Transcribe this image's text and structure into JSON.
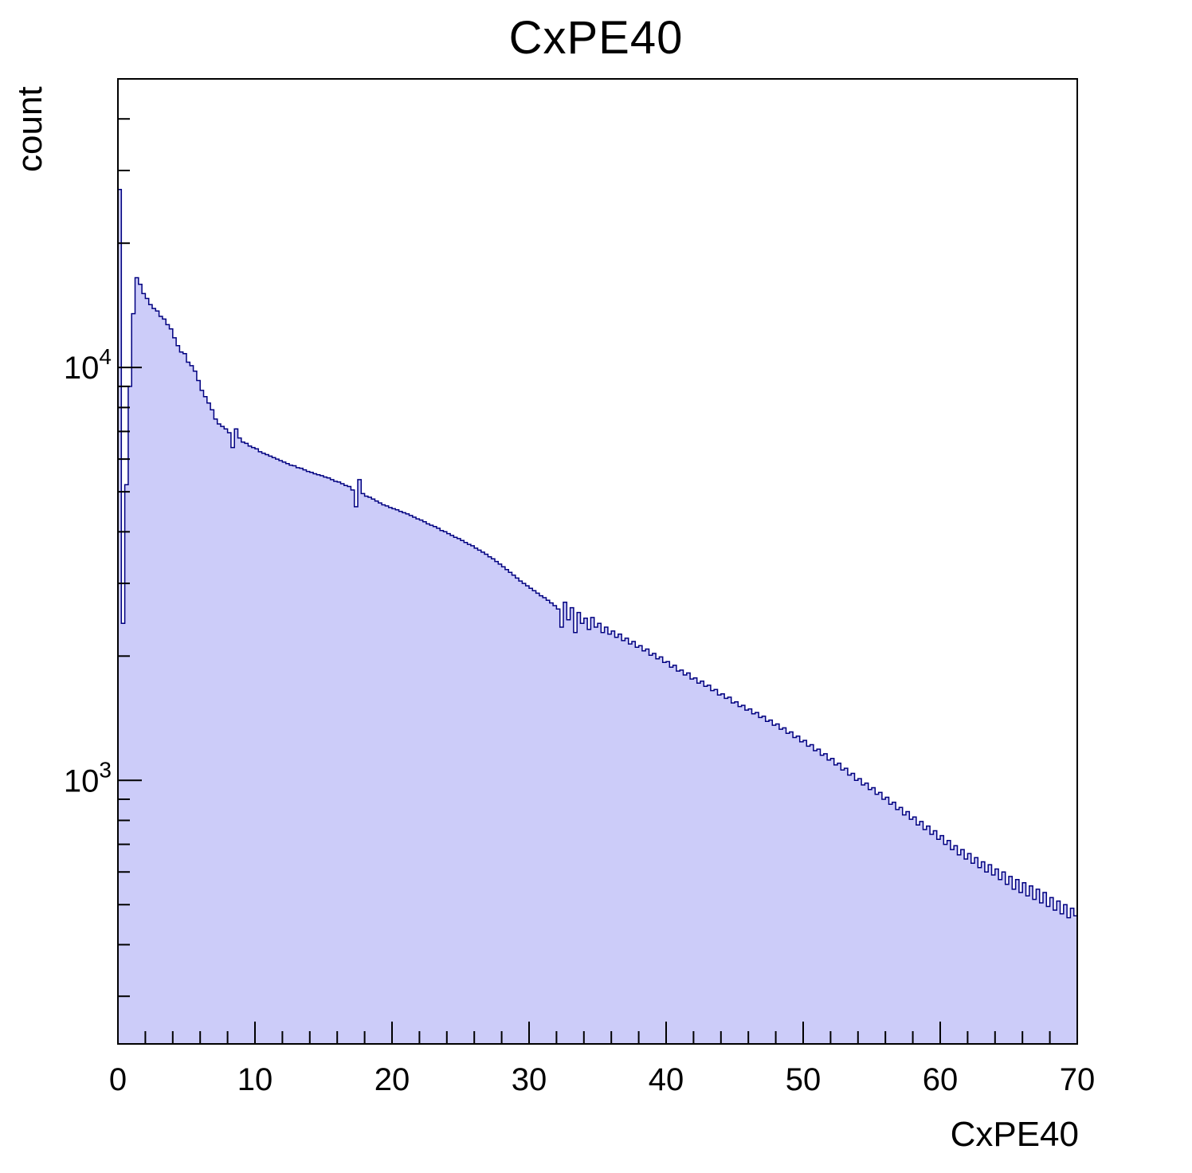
{
  "chart_data": {
    "type": "bar",
    "subtype": "histogram-log-y",
    "title": "CxPE40",
    "xlabel": "CxPE40",
    "ylabel": "count",
    "x_min": 0,
    "x_max": 70,
    "bin_width": 0.25,
    "y_scale": "log",
    "ylim": [
      230,
      50000
    ],
    "x_ticks": [
      0,
      10,
      20,
      30,
      40,
      50,
      60,
      70
    ],
    "x_minor_tick_step": 2,
    "y_major_ticks": [
      {
        "value": 1000,
        "exp": "3"
      },
      {
        "value": 10000,
        "exp": "4"
      }
    ],
    "legend": "none",
    "grid": false,
    "colors": {
      "fill": "#ccccf9",
      "line": "#000080",
      "axis": "#000000",
      "background": "#ffffff"
    },
    "counts": [
      27000,
      2400,
      5200,
      9000,
      13500,
      16500,
      15900,
      15100,
      14700,
      14200,
      13900,
      13700,
      13300,
      13100,
      12700,
      12400,
      11800,
      11300,
      10900,
      10800,
      10300,
      10100,
      9800,
      9300,
      8800,
      8500,
      8200,
      7900,
      7500,
      7300,
      7200,
      7100,
      6950,
      6400,
      7100,
      6750,
      6600,
      6550,
      6450,
      6400,
      6350,
      6250,
      6200,
      6150,
      6100,
      6050,
      6000,
      5950,
      5900,
      5850,
      5800,
      5780,
      5720,
      5700,
      5650,
      5600,
      5570,
      5530,
      5500,
      5470,
      5430,
      5400,
      5350,
      5300,
      5280,
      5230,
      5180,
      5150,
      5050,
      4600,
      5350,
      4950,
      4880,
      4850,
      4800,
      4750,
      4700,
      4650,
      4620,
      4580,
      4550,
      4520,
      4480,
      4450,
      4420,
      4380,
      4340,
      4300,
      4270,
      4230,
      4180,
      4150,
      4120,
      4080,
      4030,
      4000,
      3960,
      3920,
      3880,
      3850,
      3810,
      3770,
      3730,
      3700,
      3650,
      3610,
      3570,
      3530,
      3480,
      3440,
      3390,
      3340,
      3290,
      3240,
      3190,
      3140,
      3090,
      3040,
      3000,
      2960,
      2920,
      2880,
      2840,
      2800,
      2770,
      2730,
      2690,
      2650,
      2600,
      2350,
      2700,
      2450,
      2620,
      2280,
      2550,
      2400,
      2470,
      2320,
      2480,
      2350,
      2400,
      2280,
      2350,
      2260,
      2300,
      2220,
      2260,
      2180,
      2210,
      2140,
      2170,
      2100,
      2120,
      2060,
      2080,
      2010,
      2030,
      1970,
      1990,
      1930,
      1940,
      1880,
      1900,
      1840,
      1850,
      1800,
      1820,
      1760,
      1770,
      1720,
      1740,
      1690,
      1700,
      1650,
      1660,
      1610,
      1620,
      1580,
      1590,
      1540,
      1550,
      1510,
      1520,
      1480,
      1490,
      1450,
      1460,
      1420,
      1430,
      1390,
      1400,
      1360,
      1370,
      1330,
      1340,
      1300,
      1310,
      1270,
      1280,
      1240,
      1250,
      1210,
      1220,
      1180,
      1190,
      1150,
      1160,
      1120,
      1130,
      1090,
      1100,
      1060,
      1070,
      1030,
      1040,
      1000,
      1010,
      975,
      985,
      950,
      960,
      925,
      935,
      900,
      910,
      875,
      885,
      850,
      860,
      825,
      840,
      805,
      815,
      780,
      795,
      760,
      775,
      740,
      755,
      720,
      735,
      700,
      715,
      680,
      695,
      660,
      680,
      645,
      665,
      630,
      650,
      615,
      635,
      600,
      625,
      590,
      610,
      575,
      600,
      560,
      585,
      545,
      575,
      535,
      565,
      525,
      555,
      515,
      545,
      505,
      535,
      495,
      520,
      485,
      510,
      475,
      500,
      465,
      490,
      470
    ]
  }
}
